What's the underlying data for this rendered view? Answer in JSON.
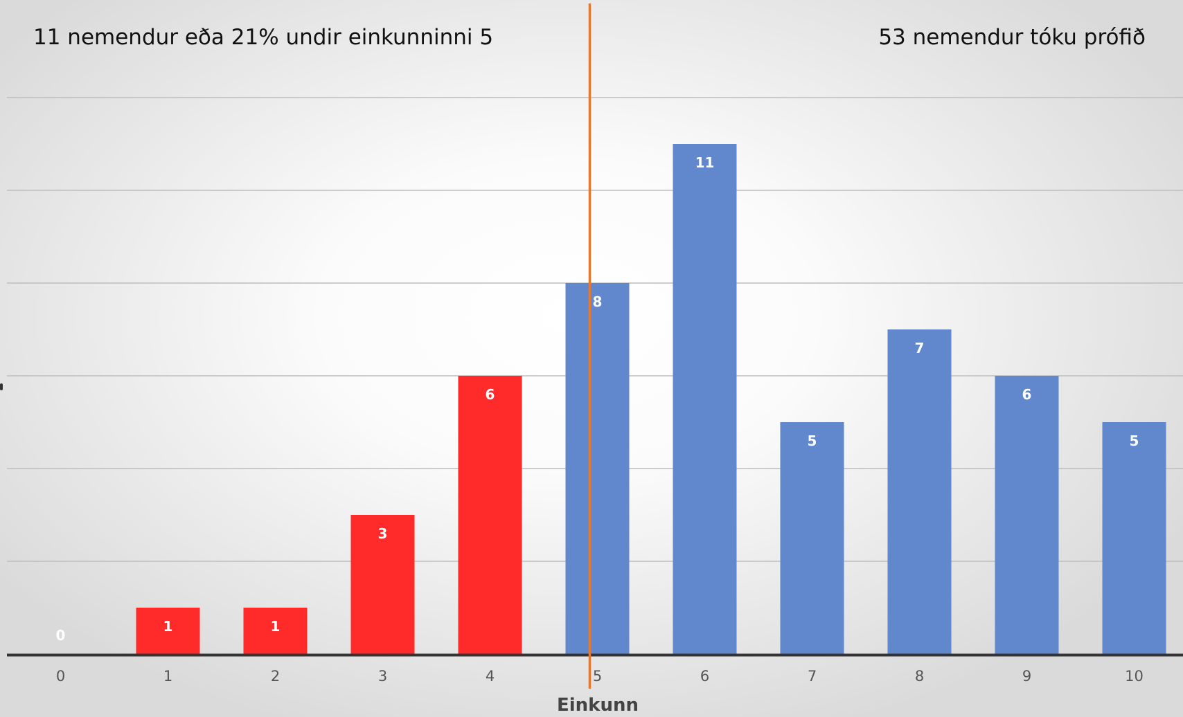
{
  "chart_data": {
    "type": "bar",
    "categories": [
      "0",
      "1",
      "2",
      "3",
      "4",
      "5",
      "6",
      "7",
      "8",
      "9",
      "10"
    ],
    "values": [
      0,
      1,
      1,
      3,
      6,
      8,
      11,
      5,
      7,
      6,
      5
    ],
    "highlight_below": 5,
    "colors": {
      "below_threshold": "#ff2a2a",
      "at_or_above_threshold": "#6187cc",
      "threshold_line": "#e8782f",
      "gridline": "#bdbdbd",
      "axis": "#333333"
    },
    "threshold_category": "5",
    "xlabel": "Einkunn",
    "ylabel": "",
    "ylim": [
      0,
      12
    ],
    "grid": true,
    "data_labels": true,
    "annotations": {
      "left": "11 nemendur eða 21% undir einkunninni 5",
      "right": "53 nemendur tóku prófið"
    }
  }
}
